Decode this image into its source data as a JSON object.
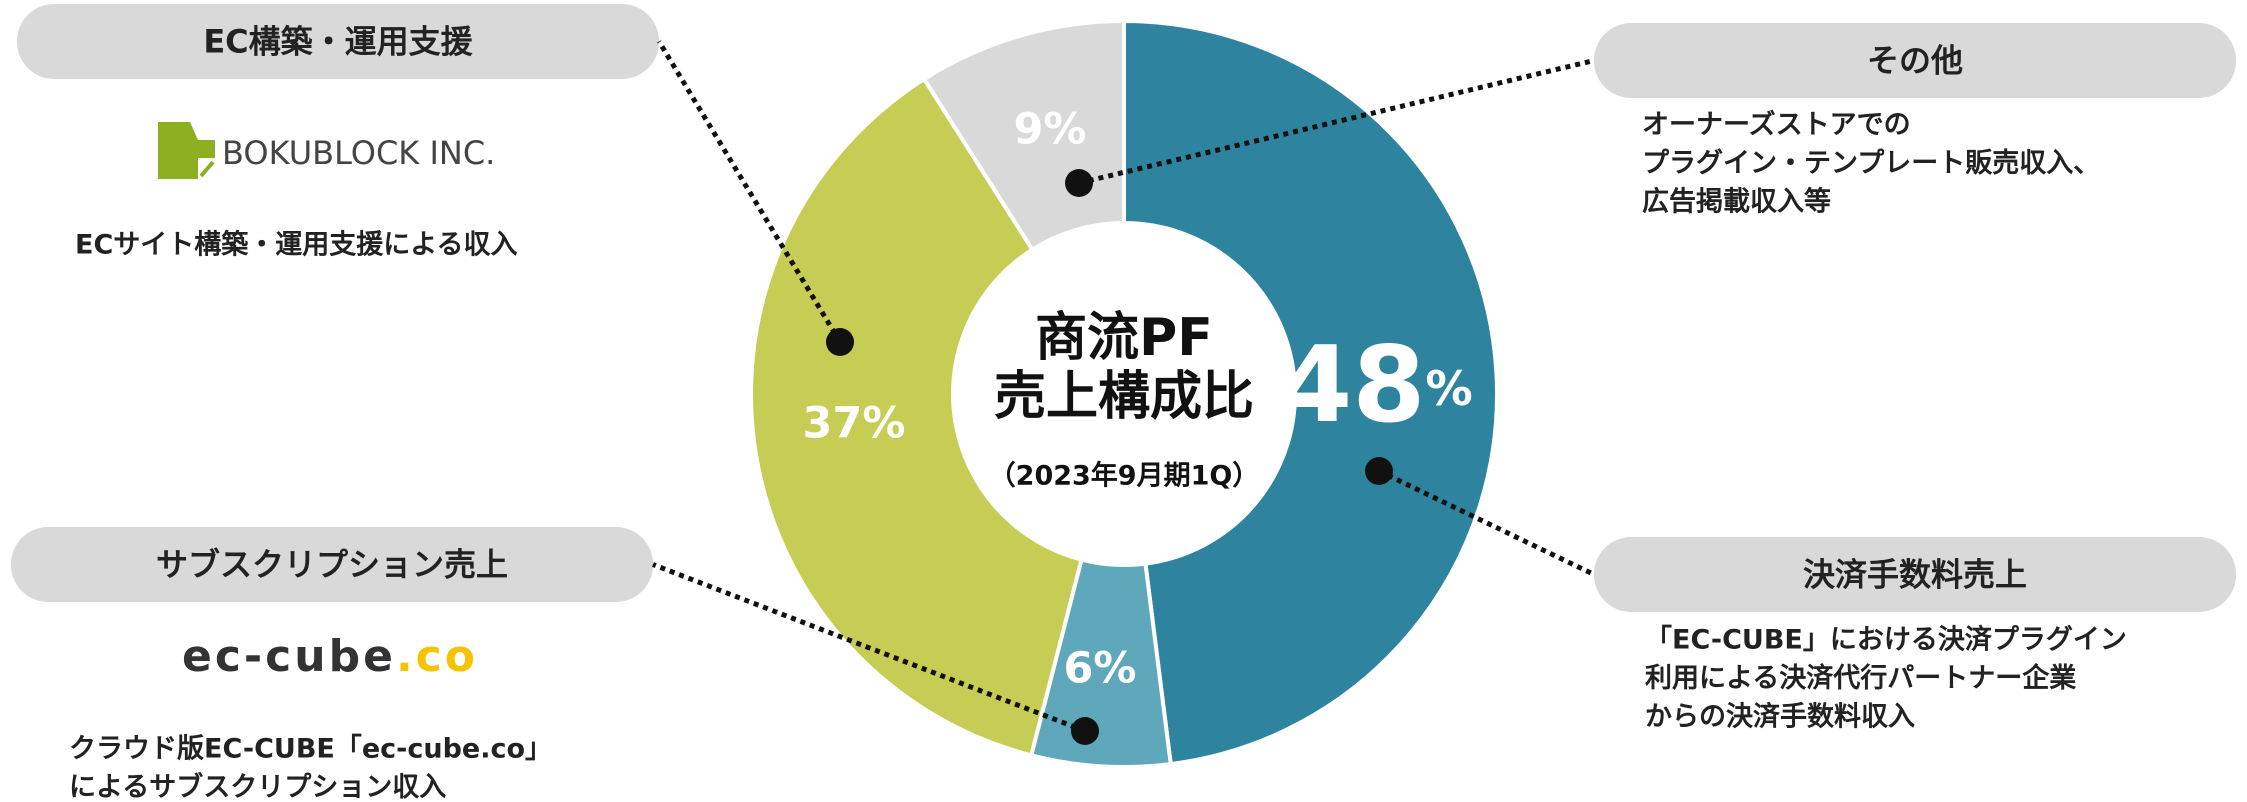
{
  "chart_data": {
    "type": "pie",
    "title_lines": [
      "商流PF",
      "売上構成比"
    ],
    "subtitle": "（2023年9月期1Q）",
    "categories": [
      "決済手数料売上",
      "サブスクリプション売上",
      "EC構築・運用支援",
      "その他"
    ],
    "values": [
      48,
      6,
      37,
      9
    ],
    "value_labels": [
      "48%",
      "6%",
      "37%",
      "9%"
    ],
    "colors": [
      "#2e849f",
      "#5fa8bc",
      "#c5cd55",
      "#d9d9d9"
    ],
    "descriptions": [
      [
        "「EC-CUBE」における決済プラグイン",
        "利用による決済代行パートナー企業",
        "からの決済手数料収入"
      ],
      [
        "クラウド版EC-CUBE「ec-cube.co」",
        "によるサブスクリプション収入"
      ],
      [
        "ECサイト構築・運用支援による収入"
      ],
      [
        "オーナーズストアでの",
        "プラグイン・テンプレート販売収入、",
        "広告掲載収入等"
      ]
    ],
    "logos": {
      "bokublock": "BOKUBLOCK INC.",
      "eccube": [
        "ec-cube",
        ".co"
      ]
    }
  }
}
